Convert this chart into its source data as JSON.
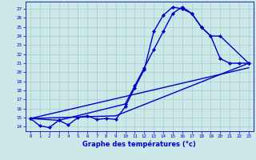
{
  "xlabel": "Graphe des températures (°c)",
  "background_color": "#cce8e8",
  "grid_color": "#aacccc",
  "line_color": "#0000cc",
  "xlim": [
    -0.5,
    23.5
  ],
  "ylim": [
    13.5,
    27.8
  ],
  "yticks": [
    14,
    15,
    16,
    17,
    18,
    19,
    20,
    21,
    22,
    23,
    24,
    25,
    26,
    27
  ],
  "xticks": [
    0,
    1,
    2,
    3,
    4,
    5,
    6,
    7,
    8,
    9,
    10,
    11,
    12,
    13,
    14,
    15,
    16,
    17,
    18,
    19,
    20,
    21,
    22,
    23
  ],
  "series": [
    {
      "x": [
        0,
        1,
        2,
        3,
        4,
        5,
        6,
        7,
        8,
        9,
        10,
        11,
        12,
        13,
        14,
        15,
        16,
        17,
        18,
        19,
        20,
        21,
        22,
        23
      ],
      "y": [
        14.9,
        14.1,
        13.9,
        14.7,
        14.2,
        15.0,
        15.2,
        14.8,
        14.9,
        14.8,
        16.2,
        18.3,
        20.3,
        24.5,
        26.3,
        27.2,
        27.0,
        26.5,
        25.0,
        24.0,
        21.5,
        21.0,
        21.0,
        21.0
      ],
      "marker": "D",
      "markersize": 2.0,
      "linewidth": 1.0,
      "has_marker": true
    },
    {
      "x": [
        0,
        3,
        10,
        11,
        12,
        13,
        14,
        15,
        16,
        17,
        18,
        19,
        20,
        23
      ],
      "y": [
        14.9,
        14.7,
        16.5,
        18.5,
        20.5,
        22.5,
        24.5,
        26.5,
        27.2,
        26.5,
        25.0,
        24.0,
        24.0,
        21.0
      ],
      "marker": "D",
      "markersize": 2.0,
      "linewidth": 1.0,
      "has_marker": true
    },
    {
      "x": [
        0,
        23
      ],
      "y": [
        14.9,
        20.5
      ],
      "marker": null,
      "markersize": 0,
      "linewidth": 1.0,
      "has_marker": false
    },
    {
      "comment": "line from (0,14.9) through (9,15.2) to (23,21.0)",
      "x": [
        0,
        9,
        23
      ],
      "y": [
        14.9,
        15.2,
        21.0
      ],
      "marker": null,
      "markersize": 0,
      "linewidth": 1.0,
      "has_marker": false
    }
  ]
}
